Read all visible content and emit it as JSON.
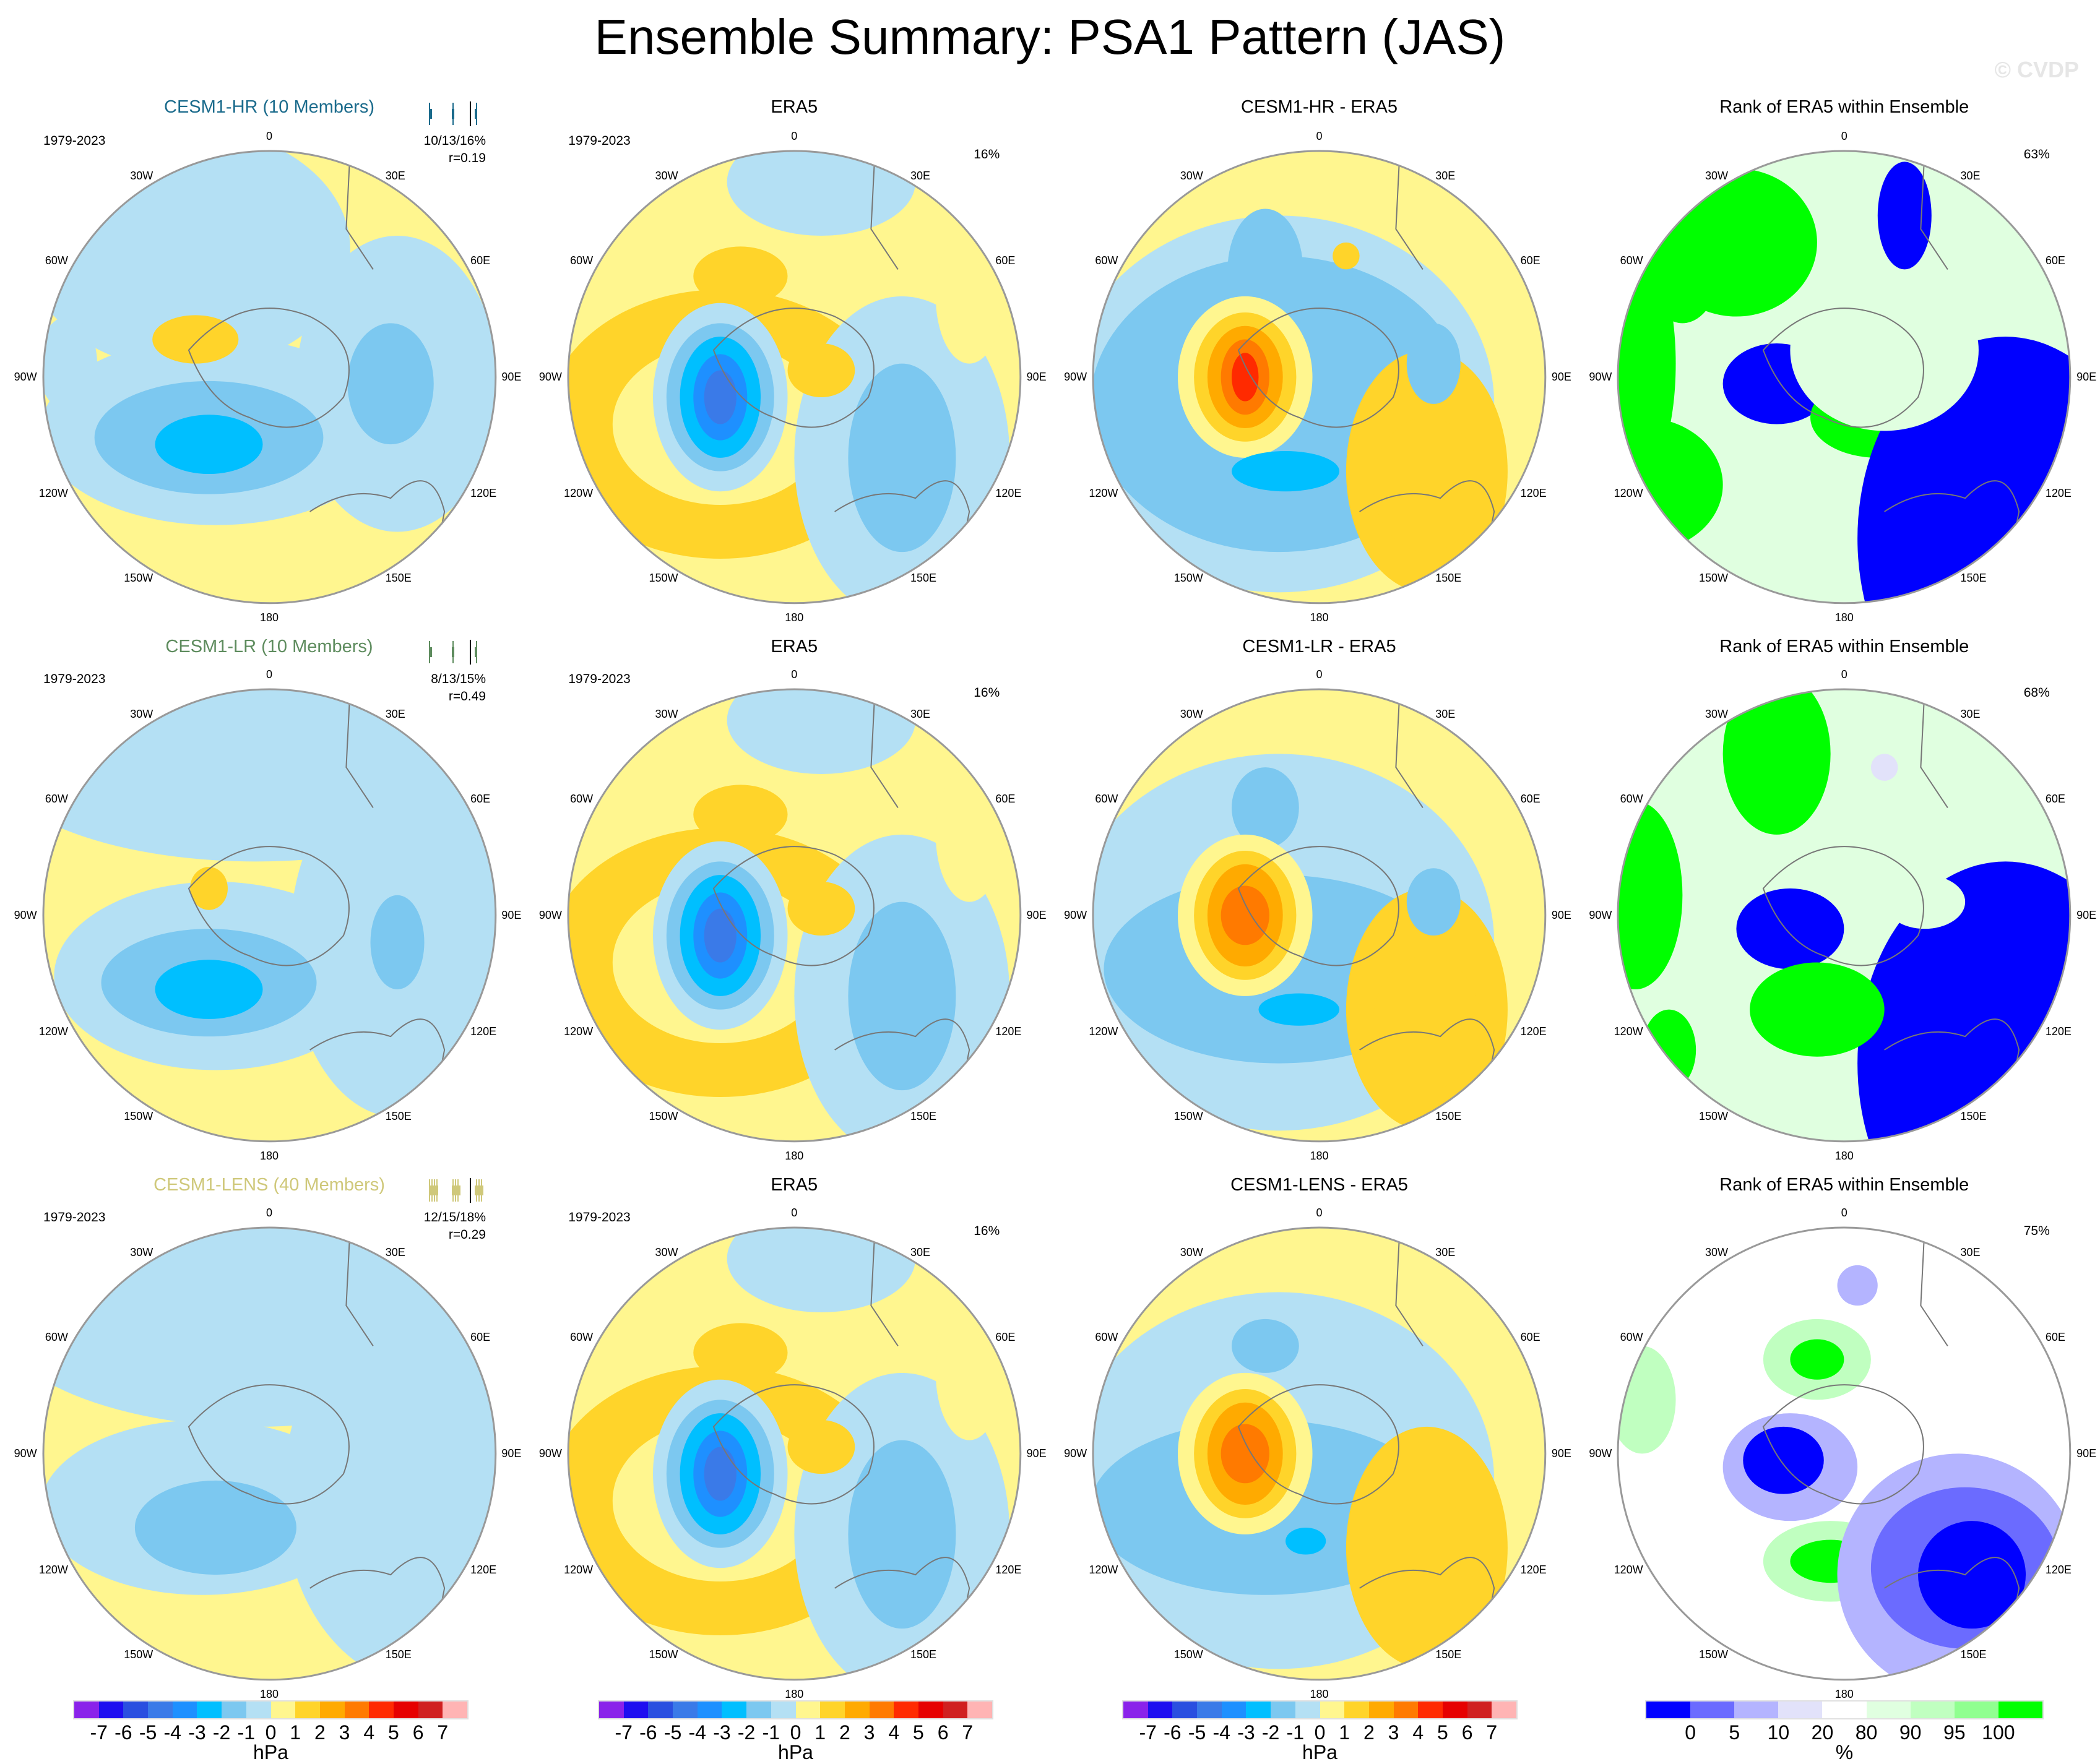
{
  "title": "Ensemble Summary: PSA1 Pattern (JAS)",
  "watermark": "© CVDP",
  "lon_labels": [
    "0",
    "30E",
    "60E",
    "90E",
    "120E",
    "150E",
    "180",
    "150W",
    "120W",
    "90W",
    "60W",
    "30W"
  ],
  "rows": [
    {
      "model_title": "CESM1-HR (10 Members)",
      "model_color": "#1b6b8c",
      "period": "1979-2023",
      "stats": "10/13/16%",
      "corr": "r=0.19",
      "era5_title": "ERA5",
      "era5_period": "1979-2023",
      "era5_pct": "16%",
      "diff_title": "CESM1-HR - ERA5",
      "rank_title": "Rank of ERA5 within Ensemble",
      "rank_pct": "63%"
    },
    {
      "model_title": "CESM1-LR (10 Members)",
      "model_color": "#5e8c5e",
      "period": "1979-2023",
      "stats": "8/13/15%",
      "corr": "r=0.49",
      "era5_title": "ERA5",
      "era5_period": "1979-2023",
      "era5_pct": "16%",
      "diff_title": "CESM1-LR - ERA5",
      "rank_title": "Rank of ERA5 within Ensemble",
      "rank_pct": "68%"
    },
    {
      "model_title": "CESM1-LENS (40 Members)",
      "model_color": "#cfc87a",
      "period": "1979-2023",
      "stats": "12/15/18%",
      "corr": "r=0.29",
      "era5_title": "ERA5",
      "era5_period": "1979-2023",
      "era5_pct": "16%",
      "diff_title": "CESM1-LENS - ERA5",
      "rank_title": "Rank of ERA5 within Ensemble",
      "rank_pct": "75%"
    }
  ],
  "colorbar_hpa": {
    "labels": [
      "-7",
      "-6",
      "-5",
      "-4",
      "-3",
      "-2",
      "-1",
      "0",
      "1",
      "2",
      "3",
      "4",
      "5",
      "6",
      "7"
    ],
    "colors": [
      "#8a22ea",
      "#1e0ef0",
      "#2a4fe0",
      "#3a7ae8",
      "#1e90ff",
      "#00bfff",
      "#7cc8f0",
      "#b4e0f4",
      "#fff68f",
      "#ffd42a",
      "#ffaa00",
      "#ff7a00",
      "#ff2a00",
      "#e60000",
      "#d02020",
      "#ffb4b4"
    ],
    "unit": "hPa"
  },
  "colorbar_rank": {
    "labels": [
      "0",
      "5",
      "10",
      "20",
      "80",
      "90",
      "95",
      "100"
    ],
    "colors": [
      "#0000ff",
      "#6b6bff",
      "#b4b4ff",
      "#e2e2fa",
      "#ffffff",
      "#e0ffe0",
      "#c0ffc0",
      "#90ff90",
      "#00ff00"
    ],
    "unit": "%"
  }
}
